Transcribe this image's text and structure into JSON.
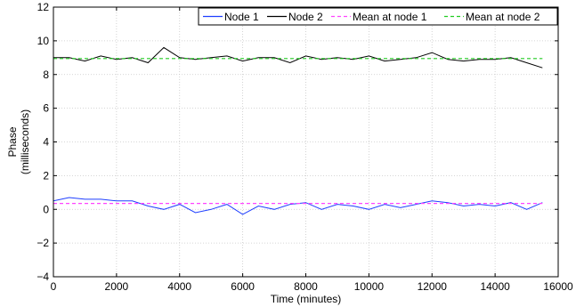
{
  "chart_data": {
    "type": "line",
    "title": "",
    "xlabel": "Time (minutes)",
    "ylabel_lines": [
      "Phase",
      "(milliseconds)"
    ],
    "xlim": [
      0,
      16000
    ],
    "ylim": [
      -4,
      12
    ],
    "xticks": [
      "0",
      "2000",
      "4000",
      "6000",
      "8000",
      "10000",
      "12000",
      "14000",
      "16000"
    ],
    "yticks": [
      "−4",
      "−2",
      "0",
      "2",
      "4",
      "6",
      "8",
      "10",
      "12"
    ],
    "grid": true,
    "legend_position": "top-right",
    "series": [
      {
        "name": "Node 1",
        "color": "#1f3fff",
        "style": "solid",
        "x": [
          0,
          500,
          1000,
          1500,
          2000,
          2500,
          3000,
          3500,
          4000,
          4500,
          5000,
          5500,
          6000,
          6500,
          7000,
          7500,
          8000,
          8500,
          9000,
          9500,
          10000,
          10500,
          11000,
          11500,
          12000,
          12500,
          13000,
          13500,
          14000,
          14500,
          15000,
          15500
        ],
        "y": [
          0.5,
          0.7,
          0.6,
          0.6,
          0.5,
          0.5,
          0.2,
          0.0,
          0.3,
          -0.2,
          0.0,
          0.3,
          -0.3,
          0.2,
          0.0,
          0.3,
          0.4,
          0.0,
          0.3,
          0.2,
          0.0,
          0.3,
          0.1,
          0.3,
          0.5,
          0.4,
          0.2,
          0.3,
          0.2,
          0.4,
          0.0,
          0.4
        ]
      },
      {
        "name": "Node 2",
        "color": "#000000",
        "style": "solid",
        "x": [
          0,
          500,
          1000,
          1500,
          2000,
          2500,
          3000,
          3500,
          4000,
          4500,
          5000,
          5500,
          6000,
          6500,
          7000,
          7500,
          8000,
          8500,
          9000,
          9500,
          10000,
          10500,
          11000,
          11500,
          12000,
          12500,
          13000,
          13500,
          14000,
          14500,
          15000,
          15500
        ],
        "y": [
          9.0,
          9.0,
          8.8,
          9.1,
          8.9,
          9.0,
          8.7,
          9.6,
          9.0,
          8.9,
          9.0,
          9.1,
          8.8,
          9.0,
          9.0,
          8.7,
          9.1,
          8.9,
          9.0,
          8.9,
          9.1,
          8.8,
          8.9,
          9.0,
          9.3,
          8.9,
          8.8,
          8.9,
          8.9,
          9.0,
          8.7,
          8.4
        ]
      },
      {
        "name": "Mean at node 1",
        "color": "#ff44ff",
        "style": "dashed",
        "x": [
          0,
          15500
        ],
        "y": [
          0.35,
          0.35
        ]
      },
      {
        "name": "Mean at node 2",
        "color": "#22cc22",
        "style": "dashed",
        "x": [
          0,
          15500
        ],
        "y": [
          8.95,
          8.95
        ]
      }
    ]
  }
}
